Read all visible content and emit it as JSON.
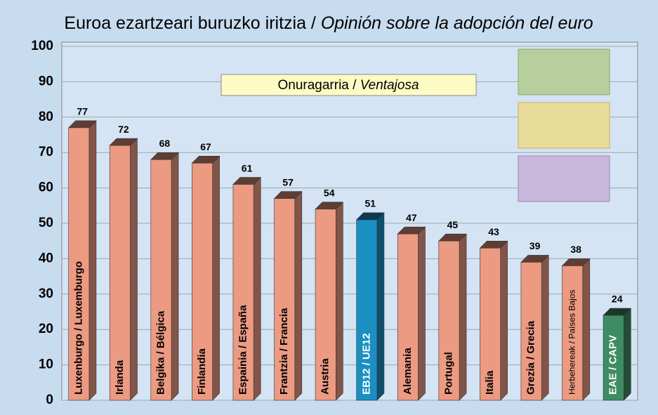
{
  "chart_data": {
    "type": "bar3d",
    "title": [
      "Euroa ezartzeari buruzko iritzia / ",
      "Opinión sobre la adopción del euro"
    ],
    "annotation": [
      "Onuragarria / ",
      "Ventajosa"
    ],
    "categories": [
      "Luxenburgo / Luxemburgo",
      "Irlanda",
      "Belgika / Bélgica",
      "Finlandia",
      "Espainia / España",
      "Frantzia / Francia",
      "Austria",
      "EB12 / UE12",
      "Alemania",
      "Portugal",
      "Italia",
      "Grezia / Grecia",
      "Herbehereak / Países Bajos",
      "EAE / CAPV"
    ],
    "values": [
      77,
      72,
      68,
      67,
      61,
      57,
      54,
      51,
      47,
      45,
      43,
      39,
      38,
      24
    ],
    "colors": [
      "#ec9a82",
      "#ec9a82",
      "#ec9a82",
      "#ec9a82",
      "#ec9a82",
      "#ec9a82",
      "#ec9a82",
      "#1b8fc2",
      "#ec9a82",
      "#ec9a82",
      "#ec9a82",
      "#ec9a82",
      "#ec9a82",
      "#3e8c62"
    ],
    "ylim": [
      0,
      100
    ],
    "yticks": [
      0,
      10,
      20,
      30,
      40,
      50,
      60,
      70,
      80,
      90,
      100
    ],
    "grid": true
  }
}
